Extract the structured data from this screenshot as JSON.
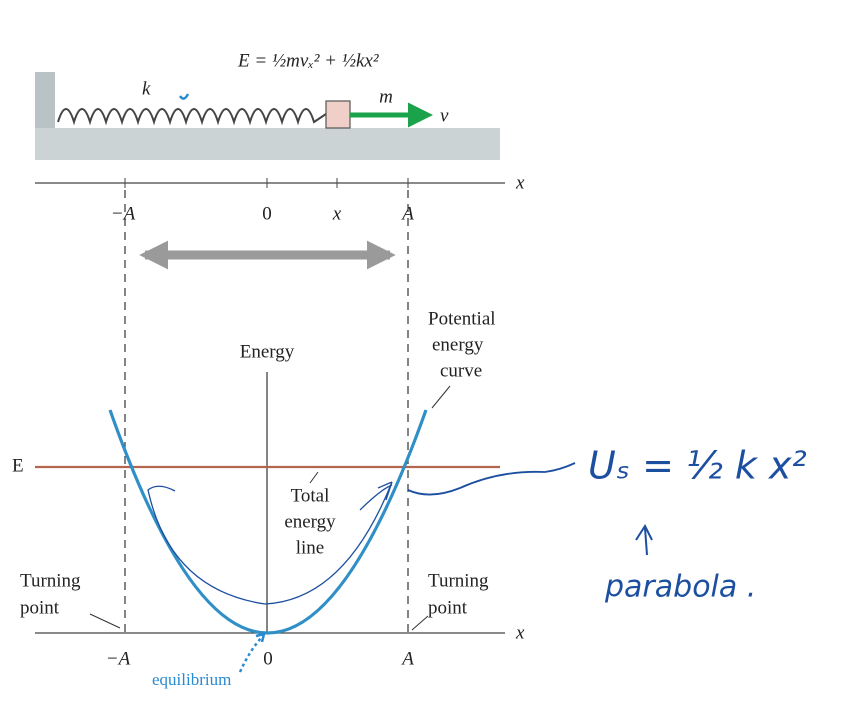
{
  "diagram": {
    "formula": "E = ½mvₓ² + ½kx²",
    "spring_constant": "k",
    "mass": "m",
    "velocity": "v⃗",
    "top_axis": {
      "label": "x",
      "ticks": [
        "−A",
        "0",
        "x",
        "A"
      ]
    },
    "energy_axis_label": "Energy",
    "potential_curve_label": [
      "Potential",
      "energy",
      "curve"
    ],
    "total_energy_symbol": "E",
    "total_energy_label": [
      "Total",
      "energy",
      "line"
    ],
    "turning_point_left": [
      "Turning",
      "point"
    ],
    "turning_point_right": [
      "Turning",
      "point"
    ],
    "bottom_axis": {
      "label": "x",
      "ticks": [
        "−A",
        "0",
        "A"
      ]
    },
    "equilibrium_label": "equilibrium"
  },
  "handwriting": {
    "equation": "Uₛ = ½ k x²",
    "note": "parabola ."
  }
}
